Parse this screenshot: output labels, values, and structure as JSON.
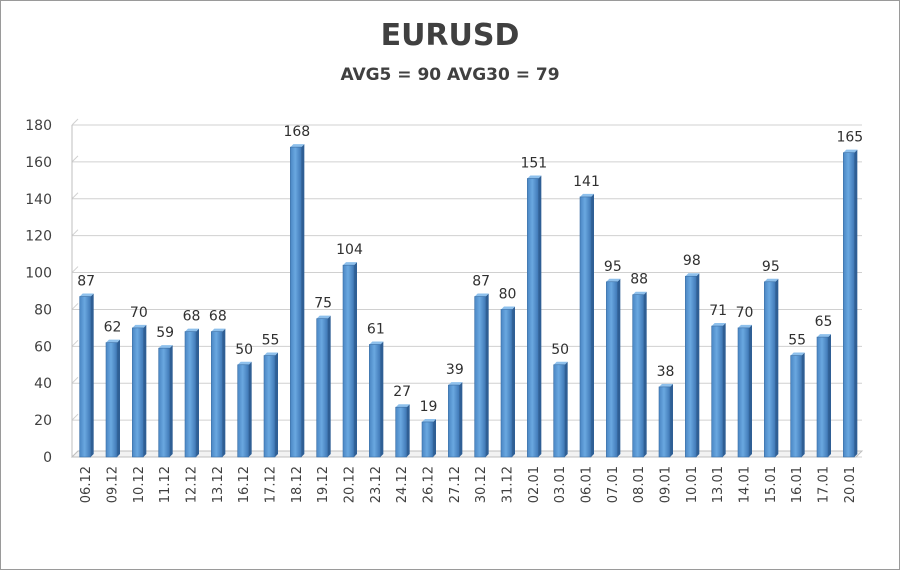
{
  "chart_data": {
    "type": "bar",
    "title": "EURUSD",
    "subtitle": "AVG5 = 90 AVG30 = 79",
    "xlabel": "",
    "ylabel": "",
    "ylim": [
      0,
      180
    ],
    "yticks": [
      0,
      20,
      40,
      60,
      80,
      100,
      120,
      140,
      160,
      180
    ],
    "grid": true,
    "legend": "none",
    "bar_color": "#5b9bd5",
    "categories": [
      "06.12",
      "09.12",
      "10.12",
      "11.12",
      "12.12",
      "13.12",
      "16.12",
      "17.12",
      "18.12",
      "19.12",
      "20.12",
      "23.12",
      "24.12",
      "26.12",
      "27.12",
      "30.12",
      "31.12",
      "02.01",
      "03.01",
      "06.01",
      "07.01",
      "08.01",
      "09.01",
      "10.01",
      "13.01",
      "14.01",
      "15.01",
      "16.01",
      "17.01",
      "20.01"
    ],
    "values": [
      87,
      62,
      70,
      59,
      68,
      68,
      50,
      55,
      168,
      75,
      104,
      61,
      27,
      19,
      39,
      87,
      80,
      151,
      50,
      141,
      95,
      88,
      38,
      98,
      71,
      70,
      95,
      55,
      65,
      165
    ]
  }
}
